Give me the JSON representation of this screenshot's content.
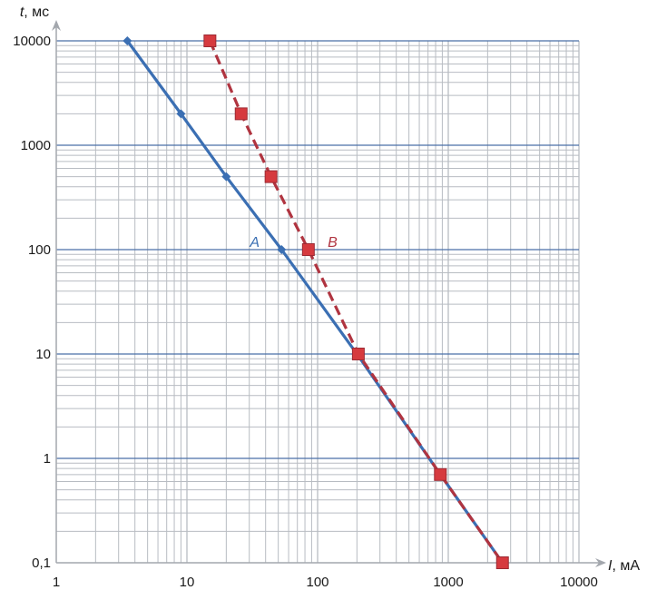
{
  "chart_data": {
    "type": "line",
    "x_scale": "log",
    "y_scale": "log",
    "xlim": [
      1,
      10000
    ],
    "ylim": [
      0.1,
      10000
    ],
    "grid": true,
    "x_ticks": [
      "1",
      "10",
      "100",
      "1000",
      "10000"
    ],
    "y_ticks": [
      "0,1",
      "1",
      "10",
      "100",
      "1000",
      "10000"
    ],
    "x_ticks_values": [
      1,
      10,
      100,
      1000,
      10000
    ],
    "y_ticks_values": [
      0.1,
      1,
      10,
      100,
      1000,
      10000
    ],
    "xlabel_var": "I",
    "xlabel_unit": ", мА",
    "ylabel_var": "t",
    "ylabel_unit": ", мс",
    "series": [
      {
        "name": "A",
        "color": "#3b6fb3",
        "style": "solid",
        "marker": "diamond",
        "points": [
          [
            3.5,
            10000
          ],
          [
            9,
            2000
          ],
          [
            20,
            500
          ],
          [
            53,
            100
          ],
          [
            200,
            10
          ],
          [
            870,
            0.7
          ],
          [
            2600,
            0.1
          ]
        ],
        "marked": [
          true,
          true,
          true,
          true,
          false,
          false,
          false
        ],
        "label_at": [
          33,
          100
        ]
      },
      {
        "name": "B",
        "color": "#b03440",
        "style": "dashed",
        "marker": "square",
        "points": [
          [
            15,
            10000
          ],
          [
            26,
            2000
          ],
          [
            44,
            500
          ],
          [
            85,
            100
          ],
          [
            205,
            10
          ],
          [
            870,
            0.7
          ],
          [
            2600,
            0.1
          ]
        ],
        "marked": [
          true,
          true,
          true,
          true,
          true,
          true,
          true
        ],
        "label_at": [
          130,
          100
        ]
      }
    ]
  },
  "colors": {
    "major_grid": "#4a6fa8",
    "minor_grid": "#b8bcc2",
    "axis": "#a3a7ad"
  }
}
